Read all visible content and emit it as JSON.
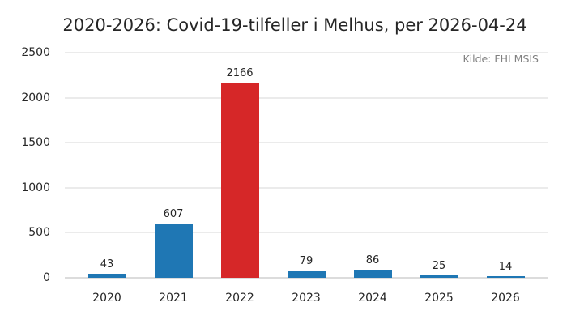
{
  "chart_data": {
    "type": "bar",
    "title": "2020-2026: Covid-19-tilfeller i Melhus, per 2026-04-24",
    "source": "Kilde: FHI MSIS",
    "xlabel": "",
    "ylabel": "",
    "categories": [
      "2020",
      "2021",
      "2022",
      "2023",
      "2024",
      "2025",
      "2026"
    ],
    "values": [
      43,
      607,
      2166,
      79,
      86,
      25,
      14
    ],
    "bar_colors": [
      "#1f77b4",
      "#1f77b4",
      "#d62728",
      "#1f77b4",
      "#1f77b4",
      "#1f77b4",
      "#1f77b4"
    ],
    "highlight_color": "#d62728",
    "default_color": "#1f77b4",
    "ylim": [
      0,
      2500
    ],
    "yticks": [
      "0",
      "500",
      "1000",
      "1500",
      "2000",
      "2500"
    ],
    "ytick_values": [
      0,
      500,
      1000,
      1500,
      2000,
      2500
    ],
    "grid": true,
    "legend": null,
    "data_labels": true
  }
}
